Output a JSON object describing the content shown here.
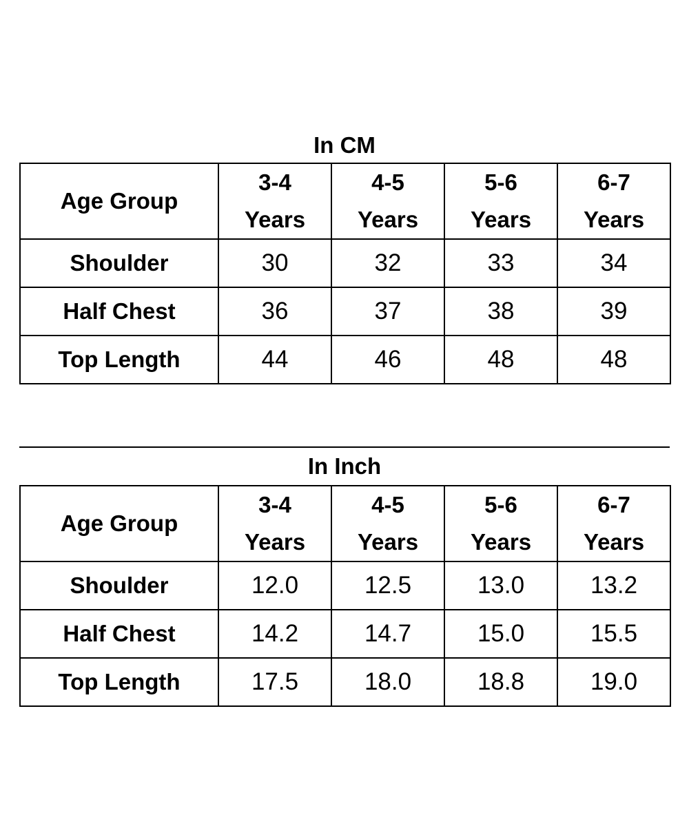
{
  "tables": [
    {
      "title": "In CM",
      "header_label": "Age Group",
      "columns": [
        {
          "range": "3-4",
          "unit": "Years"
        },
        {
          "range": "4-5",
          "unit": "Years"
        },
        {
          "range": "5-6",
          "unit": "Years"
        },
        {
          "range": "6-7",
          "unit": "Years"
        }
      ],
      "rows": [
        {
          "label": "Shoulder",
          "values": [
            "30",
            "32",
            "33",
            "34"
          ]
        },
        {
          "label": "Half Chest",
          "values": [
            "36",
            "37",
            "38",
            "39"
          ]
        },
        {
          "label": "Top Length",
          "values": [
            "44",
            "46",
            "48",
            "48"
          ]
        }
      ]
    },
    {
      "title": "In Inch",
      "header_label": "Age Group",
      "columns": [
        {
          "range": "3-4",
          "unit": "Years"
        },
        {
          "range": "4-5",
          "unit": "Years"
        },
        {
          "range": "5-6",
          "unit": "Years"
        },
        {
          "range": "6-7",
          "unit": "Years"
        }
      ],
      "rows": [
        {
          "label": "Shoulder",
          "values": [
            "12.0",
            "12.5",
            "13.0",
            "13.2"
          ]
        },
        {
          "label": "Half Chest",
          "values": [
            "14.2",
            "14.7",
            "15.0",
            "15.5"
          ]
        },
        {
          "label": "Top Length",
          "values": [
            "17.5",
            "18.0",
            "18.8",
            "19.0"
          ]
        }
      ]
    }
  ]
}
